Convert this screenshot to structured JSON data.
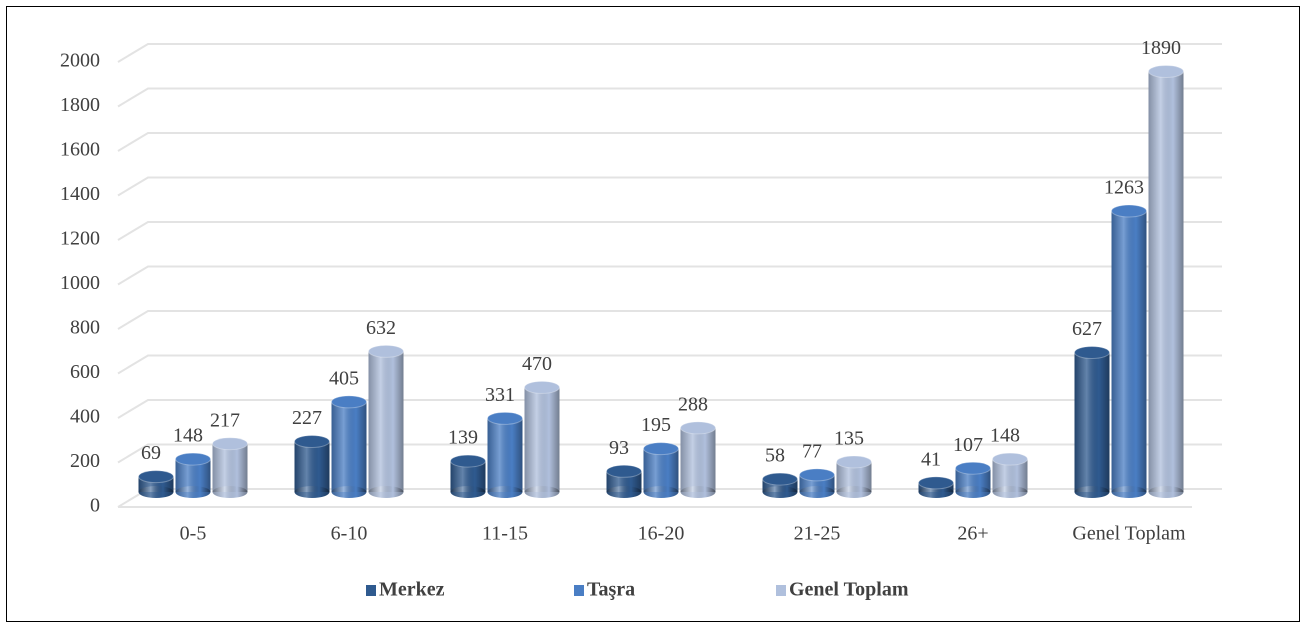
{
  "chart_data": {
    "type": "bar3d",
    "categories": [
      "0-5",
      "6-10",
      "11-15",
      "16-20",
      "21-25",
      "26+",
      "Genel Toplam"
    ],
    "series": [
      {
        "name": "Merkez",
        "color": "#2f5a8f",
        "values": [
          69,
          227,
          139,
          93,
          58,
          41,
          627
        ]
      },
      {
        "name": "Taşra",
        "color": "#4a7ec4",
        "values": [
          148,
          405,
          331,
          195,
          77,
          107,
          1263
        ]
      },
      {
        "name": "Genel Toplam",
        "color": "#b0c0dd",
        "values": [
          217,
          632,
          470,
          288,
          135,
          148,
          1890
        ]
      }
    ],
    "ylim": [
      0,
      2000
    ],
    "yticks": [
      0,
      200,
      400,
      600,
      800,
      1000,
      1200,
      1400,
      1600,
      1800,
      2000
    ],
    "grid": true,
    "legend": "bottom"
  }
}
